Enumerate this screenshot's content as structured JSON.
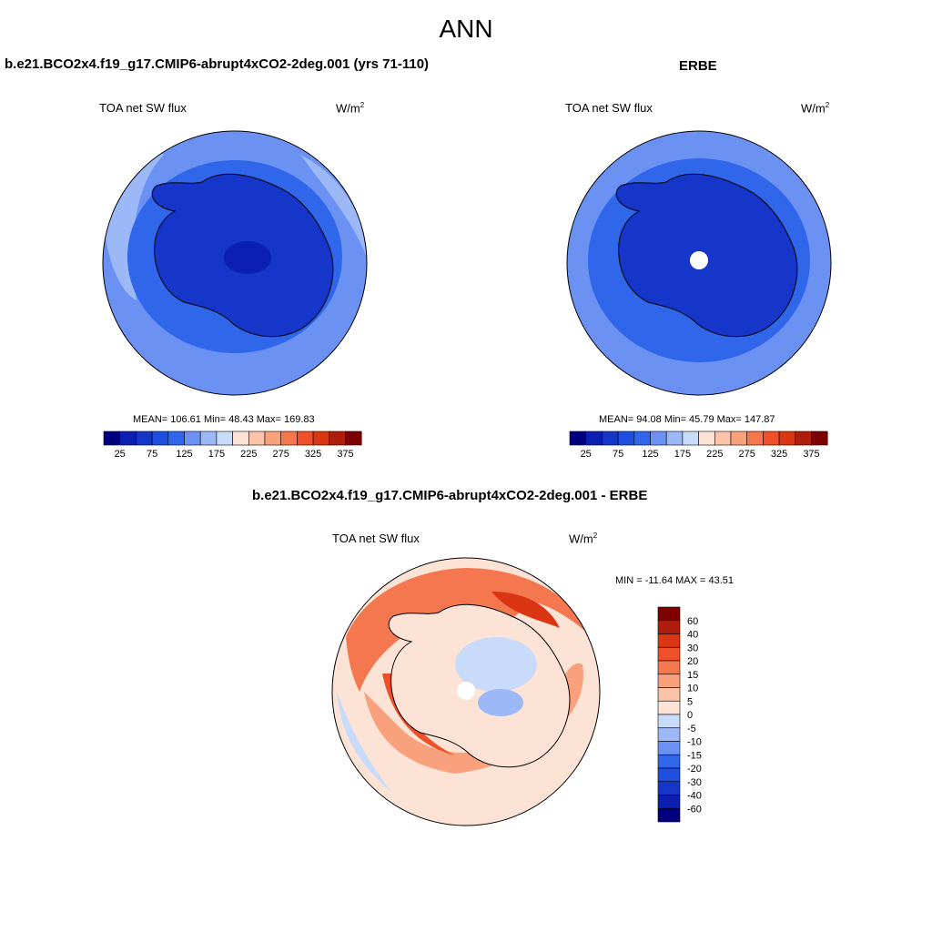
{
  "title": "ANN",
  "colors": {
    "blue_scale": [
      "#00007f",
      "#0b1fb0",
      "#1636c9",
      "#1e4fe0",
      "#2f66ea",
      "#6b92f2",
      "#9db8f7",
      "#c9dbfb"
    ],
    "red_scale": [
      "#fde3d5",
      "#fcc3a8",
      "#f9a07c",
      "#f5774f",
      "#ee5129",
      "#db3613",
      "#b01e0b",
      "#7f0000"
    ],
    "coastline": "#000000"
  },
  "panels": [
    {
      "id": "model",
      "title": "b.e21.BCO2x4.f19_g17.CMIP6-abrupt4xCO2-2deg.001 (yrs 71-110)",
      "left_label": "TOA net SW flux",
      "units": "W/m",
      "units_sup": "2",
      "stats": "MEAN= 106.61  Min=  48.43  Max= 169.83",
      "colorbar_ticks": [
        "25",
        "75",
        "125",
        "175",
        "225",
        "275",
        "325",
        "375"
      ]
    },
    {
      "id": "obs",
      "title": "ERBE",
      "left_label": "TOA net SW flux",
      "units": "W/m",
      "units_sup": "2",
      "stats": "MEAN=  94.08  Min=  45.79  Max= 147.87",
      "colorbar_ticks": [
        "25",
        "75",
        "125",
        "175",
        "225",
        "275",
        "325",
        "375"
      ]
    },
    {
      "id": "diff",
      "title": "b.e21.BCO2x4.f19_g17.CMIP6-abrupt4xCO2-2deg.001 - ERBE",
      "left_label": "TOA net SW flux",
      "units": "W/m",
      "units_sup": "2",
      "stats": "MIN = -11.64 MAX =  43.51",
      "colorbar_ticks": [
        "60",
        "40",
        "30",
        "20",
        "15",
        "10",
        "5",
        "0",
        "-5",
        "-10",
        "-15",
        "-20",
        "-30",
        "-40",
        "-60"
      ]
    }
  ]
}
